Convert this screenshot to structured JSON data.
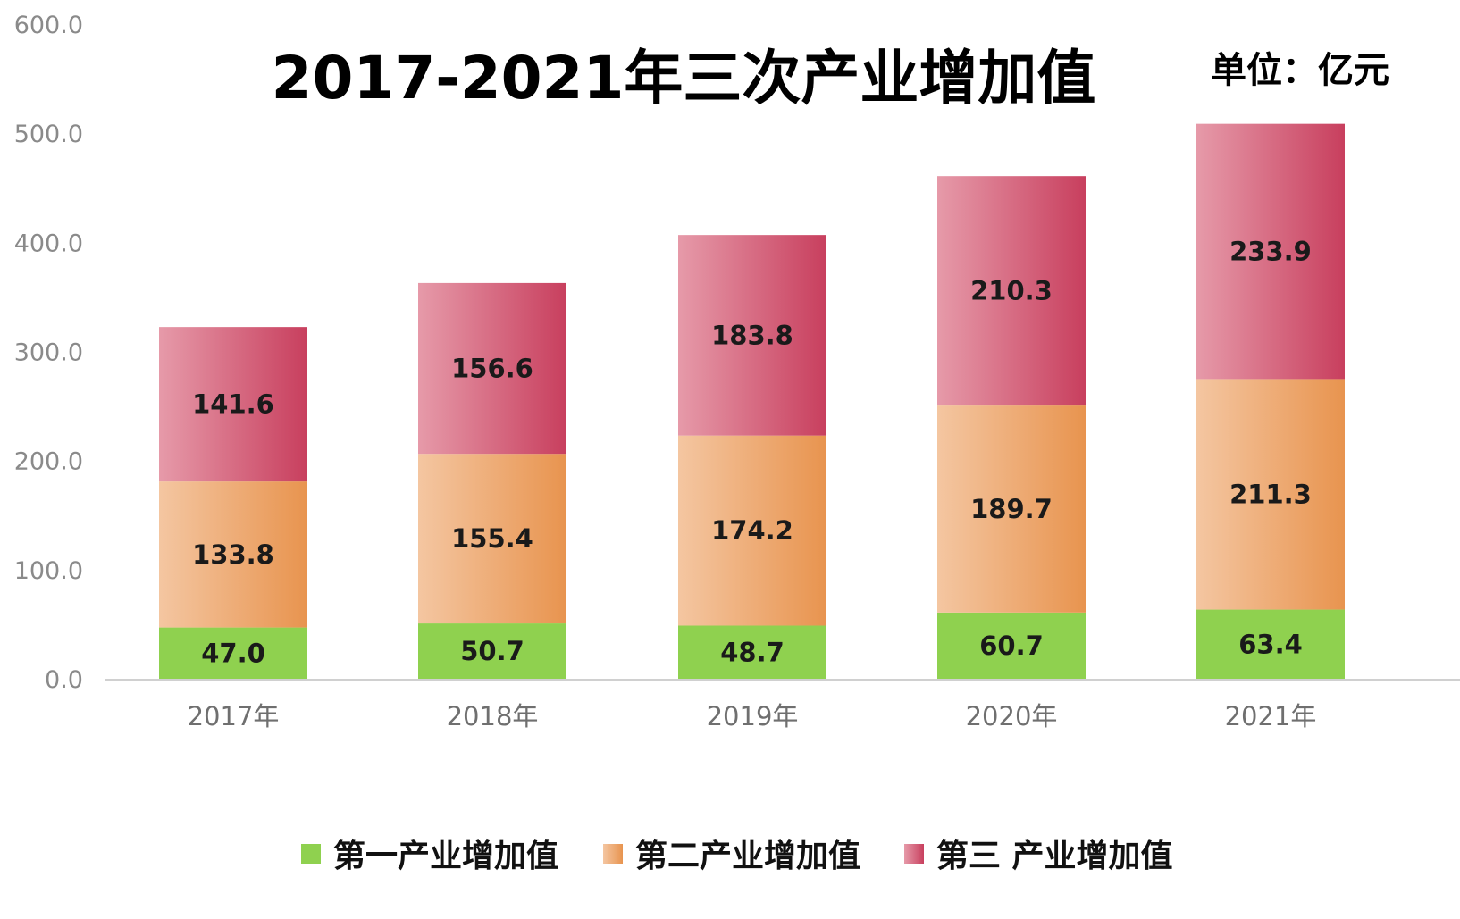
{
  "chart_data": {
    "type": "bar",
    "stacked": true,
    "title": "2017-2021年三次产业增加值",
    "unit_note": "单位：亿元",
    "categories": [
      "2017年",
      "2018年",
      "2019年",
      "2020年",
      "2021年"
    ],
    "series": [
      {
        "name": "第一产业增加值",
        "values": [
          47.0,
          50.7,
          48.7,
          60.7,
          63.4
        ],
        "labels": [
          "47.0",
          "50.7",
          "48.7",
          "60.7",
          "63.4"
        ],
        "color": "#8fd14f"
      },
      {
        "name": "第二产业增加值",
        "values": [
          133.8,
          155.4,
          174.2,
          189.7,
          211.3
        ],
        "labels": [
          "133.8",
          "155.4",
          "174.2",
          "189.7",
          "211.3"
        ],
        "color": "#e8944f"
      },
      {
        "name": "第三 产业增加值",
        "values": [
          141.6,
          156.6,
          183.8,
          210.3,
          233.9
        ],
        "labels": [
          "141.6",
          "156.6",
          "183.8",
          "210.3",
          "233.9"
        ],
        "color": "#cc4a66"
      }
    ],
    "ylim": [
      0,
      600
    ],
    "yticks": [
      "0.0",
      "100.0",
      "200.0",
      "300.0",
      "400.0",
      "500.0",
      "600.0"
    ],
    "grid": false,
    "legend_position": "bottom",
    "xlabel": "",
    "ylabel": ""
  }
}
